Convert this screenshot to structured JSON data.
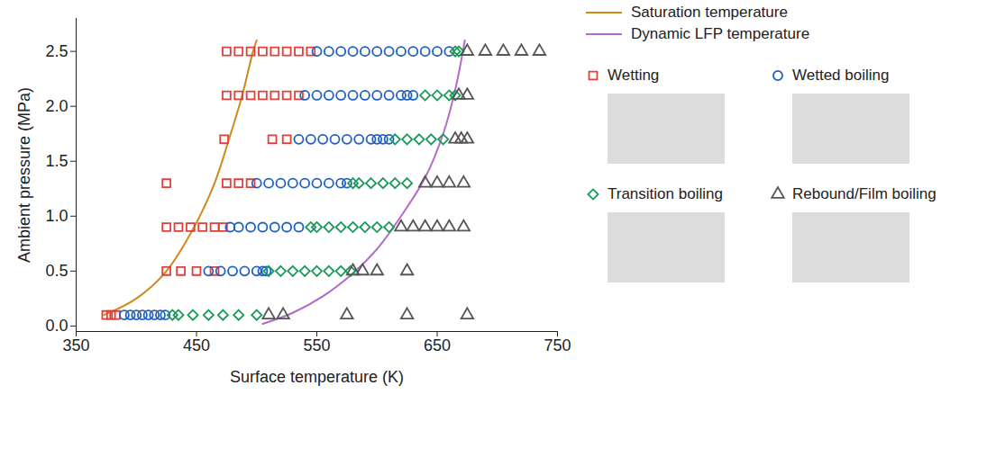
{
  "chart_data": {
    "type": "scatter",
    "xlabel": "Surface temperature (K)",
    "ylabel": "Ambient pressure (MPa)",
    "xlim": [
      350,
      750
    ],
    "xticks": [
      350,
      450,
      550,
      650,
      750
    ],
    "ylim": [
      -0.05,
      2.8
    ],
    "yticks": [
      {
        "value": 0,
        "label": "0.0"
      },
      {
        "value": 0.5,
        "label": "0.5"
      },
      {
        "value": 1,
        "label": "1.0"
      },
      {
        "value": 1.5,
        "label": "1.5"
      },
      {
        "value": 2,
        "label": "2.0"
      },
      {
        "value": 2.5,
        "label": "2.5"
      }
    ],
    "grid": false,
    "legend": "right",
    "series": [
      {
        "name": "Saturation temperature",
        "type": "line",
        "color": "#d08a1a",
        "line_style": "solid",
        "x": [
          373,
          400,
          425,
          448,
          465,
          477,
          488,
          497,
          500
        ],
        "values": [
          0.1,
          0.25,
          0.5,
          0.9,
          1.3,
          1.7,
          2.1,
          2.5,
          2.6
        ]
      },
      {
        "name": "Dynamic LFP temperature",
        "type": "line",
        "color": "#b06cc8",
        "line_style": "solid",
        "x": [
          505,
          530,
          555,
          580,
          600,
          620,
          640,
          655,
          665,
          673
        ],
        "values": [
          0.02,
          0.12,
          0.27,
          0.48,
          0.7,
          1.0,
          1.35,
          1.75,
          2.15,
          2.6
        ]
      },
      {
        "name": "Wetting",
        "type": "scatter",
        "marker": "square",
        "color": "#e0403a",
        "x": [
          375,
          379,
          383,
          425,
          437,
          450,
          465,
          425,
          435,
          445,
          455,
          465,
          472,
          425,
          475,
          485,
          495,
          473,
          513,
          525,
          475,
          485,
          495,
          505,
          515,
          525,
          535,
          475,
          485,
          495,
          505,
          515,
          525,
          535,
          545
        ],
        "values": [
          0.1,
          0.1,
          0.1,
          0.5,
          0.5,
          0.5,
          0.5,
          0.9,
          0.9,
          0.9,
          0.9,
          0.9,
          0.9,
          1.3,
          1.3,
          1.3,
          1.3,
          1.7,
          1.7,
          1.7,
          2.1,
          2.1,
          2.1,
          2.1,
          2.1,
          2.1,
          2.1,
          2.5,
          2.5,
          2.5,
          2.5,
          2.5,
          2.5,
          2.5,
          2.5
        ]
      },
      {
        "name": "Wetted boiling",
        "type": "scatter",
        "marker": "circle",
        "color": "#1f5fbf",
        "x": [
          390,
          395,
          400,
          405,
          410,
          415,
          420,
          424,
          460,
          470,
          480,
          490,
          500,
          505,
          508,
          478,
          485,
          495,
          505,
          515,
          525,
          535,
          500,
          510,
          520,
          530,
          540,
          550,
          560,
          570,
          575,
          535,
          545,
          555,
          565,
          575,
          585,
          595,
          600,
          605,
          610,
          540,
          550,
          560,
          570,
          580,
          590,
          600,
          610,
          620,
          625,
          630,
          550,
          560,
          570,
          580,
          590,
          600,
          610,
          620,
          630,
          640,
          650,
          660
        ],
        "values": [
          0.1,
          0.1,
          0.1,
          0.1,
          0.1,
          0.1,
          0.1,
          0.1,
          0.5,
          0.5,
          0.5,
          0.5,
          0.5,
          0.5,
          0.5,
          0.9,
          0.9,
          0.9,
          0.9,
          0.9,
          0.9,
          0.9,
          1.3,
          1.3,
          1.3,
          1.3,
          1.3,
          1.3,
          1.3,
          1.3,
          1.3,
          1.7,
          1.7,
          1.7,
          1.7,
          1.7,
          1.7,
          1.7,
          1.7,
          1.7,
          1.7,
          2.1,
          2.1,
          2.1,
          2.1,
          2.1,
          2.1,
          2.1,
          2.1,
          2.1,
          2.1,
          2.1,
          2.5,
          2.5,
          2.5,
          2.5,
          2.5,
          2.5,
          2.5,
          2.5,
          2.5,
          2.5,
          2.5,
          2.5
        ]
      },
      {
        "name": "Transition boiling",
        "type": "scatter",
        "marker": "diamond",
        "color": "#1a9a5a",
        "x": [
          430,
          435,
          447,
          460,
          472,
          485,
          500,
          510,
          520,
          530,
          540,
          550,
          560,
          570,
          578,
          545,
          550,
          560,
          570,
          580,
          590,
          600,
          610,
          580,
          585,
          595,
          605,
          615,
          625,
          615,
          625,
          635,
          645,
          655,
          640,
          650,
          660,
          665,
          665,
          668
        ],
        "values": [
          0.1,
          0.1,
          0.1,
          0.1,
          0.1,
          0.1,
          0.1,
          0.5,
          0.5,
          0.5,
          0.5,
          0.5,
          0.5,
          0.5,
          0.5,
          0.9,
          0.9,
          0.9,
          0.9,
          0.9,
          0.9,
          0.9,
          0.9,
          1.3,
          1.3,
          1.3,
          1.3,
          1.3,
          1.3,
          1.7,
          1.7,
          1.7,
          1.7,
          1.7,
          2.1,
          2.1,
          2.1,
          2.1,
          2.5,
          2.5
        ]
      },
      {
        "name": "Rebound/Film boiling",
        "type": "scatter",
        "marker": "triangle",
        "color": "#555555",
        "x": [
          510,
          522,
          575,
          625,
          675,
          580,
          588,
          600,
          625,
          620,
          630,
          640,
          650,
          660,
          672,
          640,
          650,
          660,
          672,
          665,
          670,
          675,
          668,
          675,
          675,
          690,
          705,
          720,
          735
        ],
        "values": [
          0.1,
          0.1,
          0.1,
          0.1,
          0.1,
          0.5,
          0.5,
          0.5,
          0.5,
          0.9,
          0.9,
          0.9,
          0.9,
          0.9,
          0.9,
          1.3,
          1.3,
          1.3,
          1.3,
          1.7,
          1.7,
          1.7,
          2.1,
          2.1,
          2.5,
          2.5,
          2.5,
          2.5,
          2.5
        ]
      }
    ]
  }
}
